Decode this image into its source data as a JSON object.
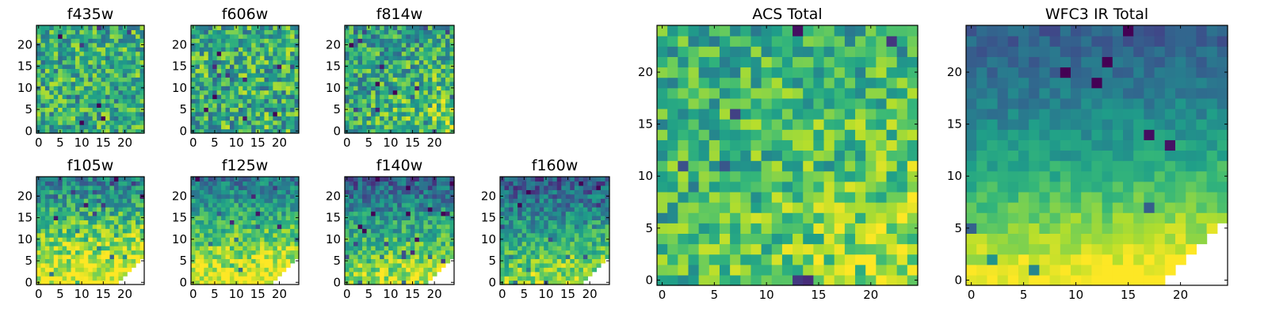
{
  "figure": {
    "background": "#ffffff"
  },
  "chart_data": [
    {
      "type": "heatmap",
      "title": "f435w",
      "grid_size": 25,
      "xlim": [
        0,
        25
      ],
      "ylim": [
        0,
        25
      ],
      "xticks": [
        0,
        5,
        10,
        15,
        20
      ],
      "yticks": [
        0,
        5,
        10,
        15,
        20
      ],
      "tick_labels_x": [
        "0",
        "5",
        "10",
        "15",
        "20"
      ],
      "tick_labels_y": [
        "0",
        "5",
        "10",
        "15",
        "20"
      ],
      "colormap": "viridis",
      "trend": "uniform_noise",
      "level": 0.62,
      "noise": 0.55,
      "seed": 11
    },
    {
      "type": "heatmap",
      "title": "f606w",
      "grid_size": 25,
      "xlim": [
        0,
        25
      ],
      "ylim": [
        0,
        25
      ],
      "xticks": [
        0,
        5,
        10,
        15,
        20
      ],
      "yticks": [
        0,
        5,
        10,
        15,
        20
      ],
      "tick_labels_x": [
        "0",
        "5",
        "10",
        "15",
        "20"
      ],
      "tick_labels_y": [
        "0",
        "5",
        "10",
        "15",
        "20"
      ],
      "colormap": "viridis",
      "trend": "uniform_noise",
      "level": 0.62,
      "noise": 0.6,
      "seed": 23
    },
    {
      "type": "heatmap",
      "title": "f814w",
      "grid_size": 25,
      "xlim": [
        0,
        25
      ],
      "ylim": [
        0,
        25
      ],
      "xticks": [
        0,
        5,
        10,
        15,
        20
      ],
      "yticks": [
        0,
        5,
        10,
        15,
        20
      ],
      "tick_labels_x": [
        "0",
        "5",
        "10",
        "15",
        "20"
      ],
      "tick_labels_y": [
        "0",
        "5",
        "10",
        "15",
        "20"
      ],
      "colormap": "viridis",
      "trend": "bottom_right_bright",
      "level": 0.55,
      "noise": 0.55,
      "seed": 37
    },
    {
      "type": "heatmap",
      "title": "f105w",
      "grid_size": 25,
      "xlim": [
        0,
        25
      ],
      "ylim": [
        0,
        25
      ],
      "xticks": [
        0,
        5,
        10,
        15,
        20
      ],
      "yticks": [
        0,
        5,
        10,
        15,
        20
      ],
      "tick_labels_x": [
        "0",
        "5",
        "10",
        "15",
        "20"
      ],
      "tick_labels_y": [
        "0",
        "5",
        "10",
        "15",
        "20"
      ],
      "colormap": "viridis",
      "trend": "bottom_bright",
      "level": 0.55,
      "noise": 0.45,
      "seed": 41,
      "masked_corner": true
    },
    {
      "type": "heatmap",
      "title": "f125w",
      "grid_size": 25,
      "xlim": [
        0,
        25
      ],
      "ylim": [
        0,
        25
      ],
      "xticks": [
        0,
        5,
        10,
        15,
        20
      ],
      "yticks": [
        0,
        5,
        10,
        15,
        20
      ],
      "tick_labels_x": [
        "0",
        "5",
        "10",
        "15",
        "20"
      ],
      "tick_labels_y": [
        "0",
        "5",
        "10",
        "15",
        "20"
      ],
      "colormap": "viridis",
      "trend": "bottom_bright",
      "level": 0.52,
      "noise": 0.38,
      "seed": 53,
      "masked_corner": true
    },
    {
      "type": "heatmap",
      "title": "f140w",
      "grid_size": 25,
      "xlim": [
        0,
        25
      ],
      "ylim": [
        0,
        25
      ],
      "xticks": [
        0,
        5,
        10,
        15,
        20
      ],
      "yticks": [
        0,
        5,
        10,
        15,
        20
      ],
      "tick_labels_x": [
        "0",
        "5",
        "10",
        "15",
        "20"
      ],
      "tick_labels_y": [
        "0",
        "5",
        "10",
        "15",
        "20"
      ],
      "colormap": "viridis",
      "trend": "bottom_bright",
      "level": 0.42,
      "noise": 0.4,
      "seed": 67,
      "masked_corner": true
    },
    {
      "type": "heatmap",
      "title": "f160w",
      "grid_size": 25,
      "xlim": [
        0,
        25
      ],
      "ylim": [
        0,
        25
      ],
      "xticks": [
        0,
        5,
        10,
        15,
        20
      ],
      "yticks": [
        0,
        5,
        10,
        15,
        20
      ],
      "tick_labels_x": [
        "0",
        "5",
        "10",
        "15",
        "20"
      ],
      "tick_labels_y": [
        "0",
        "5",
        "10",
        "15",
        "20"
      ],
      "colormap": "viridis",
      "trend": "bottom_bright",
      "level": 0.38,
      "noise": 0.4,
      "seed": 79,
      "masked_corner": true
    },
    {
      "type": "heatmap",
      "title": "ACS Total",
      "grid_size": 25,
      "xlim": [
        0,
        25
      ],
      "ylim": [
        0,
        25
      ],
      "xticks": [
        0,
        5,
        10,
        15,
        20
      ],
      "yticks": [
        0,
        5,
        10,
        15,
        20
      ],
      "tick_labels_x": [
        "0",
        "5",
        "10",
        "15",
        "20"
      ],
      "tick_labels_y": [
        "0",
        "5",
        "10",
        "15",
        "20"
      ],
      "colormap": "viridis",
      "trend": "bottom_right_bright",
      "level": 0.62,
      "noise": 0.45,
      "seed": 97
    },
    {
      "type": "heatmap",
      "title": "WFC3 IR Total",
      "grid_size": 25,
      "xlim": [
        0,
        25
      ],
      "ylim": [
        0,
        25
      ],
      "xticks": [
        0,
        5,
        10,
        15,
        20
      ],
      "yticks": [
        0,
        5,
        10,
        15,
        20
      ],
      "tick_labels_x": [
        "0",
        "5",
        "10",
        "15",
        "20"
      ],
      "tick_labels_y": [
        "0",
        "5",
        "10",
        "15",
        "20"
      ],
      "colormap": "viridis",
      "trend": "smooth_bottom_bright",
      "level": 0.45,
      "noise": 0.18,
      "seed": 113,
      "masked_corner": true
    }
  ]
}
